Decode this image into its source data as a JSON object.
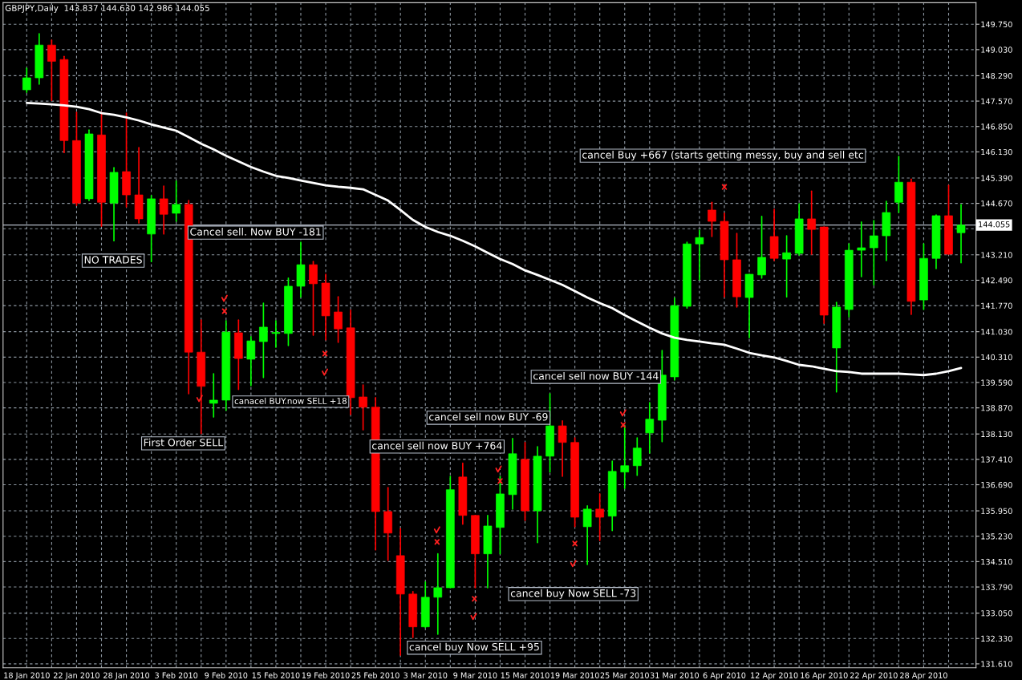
{
  "chart_data": {
    "type": "candlestick",
    "title": "GBPJPY,Daily  143.837 144.630 142.986 144.055",
    "categories": [
      "18 Jan 2010",
      null,
      null,
      null,
      "22 Jan 2010",
      null,
      null,
      null,
      "28 Jan 2010",
      null,
      null,
      null,
      "3 Feb 2010",
      null,
      null,
      null,
      "9 Feb 2010",
      null,
      null,
      null,
      "15 Feb 2010",
      null,
      null,
      null,
      "19 Feb 2010",
      null,
      null,
      null,
      "25 Feb 2010",
      null,
      null,
      null,
      "3 Mar 2010",
      null,
      null,
      null,
      "9 Mar 2010",
      null,
      null,
      null,
      "15 Mar 2010",
      null,
      null,
      null,
      "19 Mar 2010",
      null,
      null,
      null,
      "25 Mar 2010",
      null,
      null,
      null,
      "31 Mar 2010",
      null,
      null,
      null,
      "6 Apr 2010",
      null,
      null,
      null,
      "12 Apr 2010",
      null,
      null,
      null,
      "16 Apr 2010",
      null,
      null,
      null,
      "22 Apr 2010",
      null,
      null,
      null,
      "28 Apr 2010",
      null,
      null,
      null
    ],
    "ohlc": [
      [
        147.89,
        148.5,
        147.82,
        148.23
      ],
      [
        148.23,
        149.48,
        148.05,
        149.16
      ],
      [
        149.16,
        149.3,
        147.59,
        148.7
      ],
      [
        148.75,
        148.84,
        146.11,
        146.45
      ],
      [
        146.45,
        147.25,
        144.61,
        144.68
      ],
      [
        144.8,
        146.75,
        144.75,
        146.64
      ],
      [
        146.61,
        147.25,
        144.02,
        144.7
      ],
      [
        144.68,
        145.68,
        143.61,
        145.55
      ],
      [
        145.57,
        147.23,
        144.57,
        144.91
      ],
      [
        144.91,
        146.25,
        144.11,
        144.23
      ],
      [
        143.8,
        144.89,
        143.02,
        144.8
      ],
      [
        144.8,
        145.16,
        143.8,
        144.36
      ],
      [
        144.39,
        145.3,
        144.16,
        144.64
      ],
      [
        144.64,
        144.75,
        139.27,
        140.45
      ],
      [
        140.45,
        141.36,
        138.14,
        139.48
      ],
      [
        139.0,
        139.84,
        138.61,
        139.09
      ],
      [
        139.09,
        141.34,
        138.8,
        141.02
      ],
      [
        141.0,
        141.36,
        139.39,
        140.27
      ],
      [
        140.25,
        140.89,
        139.5,
        140.77
      ],
      [
        140.75,
        141.84,
        139.73,
        141.16
      ],
      [
        140.98,
        141.34,
        140.59,
        141.0
      ],
      [
        140.98,
        142.55,
        140.64,
        142.32
      ],
      [
        142.32,
        143.57,
        142.02,
        142.93
      ],
      [
        142.93,
        143.02,
        140.93,
        142.39
      ],
      [
        142.41,
        142.66,
        140.8,
        141.48
      ],
      [
        141.59,
        142.02,
        140.73,
        141.11
      ],
      [
        141.14,
        141.64,
        138.68,
        139.16
      ],
      [
        139.18,
        139.52,
        138.25,
        138.89
      ],
      [
        138.89,
        139.16,
        134.84,
        135.93
      ],
      [
        135.93,
        136.61,
        134.55,
        135.32
      ],
      [
        134.68,
        135.45,
        131.86,
        133.59
      ],
      [
        133.59,
        133.66,
        132.36,
        132.66
      ],
      [
        132.66,
        133.93,
        132.64,
        133.5
      ],
      [
        133.5,
        134.73,
        132.45,
        133.77
      ],
      [
        133.77,
        136.93,
        133.77,
        136.55
      ],
      [
        136.91,
        137.3,
        135.57,
        135.82
      ],
      [
        135.82,
        135.82,
        133.77,
        134.73
      ],
      [
        134.73,
        135.82,
        133.77,
        135.52
      ],
      [
        135.48,
        136.93,
        134.73,
        136.43
      ],
      [
        136.41,
        138.0,
        136.0,
        137.57
      ],
      [
        137.41,
        137.89,
        135.68,
        135.95
      ],
      [
        135.95,
        137.77,
        135.05,
        137.5
      ],
      [
        137.5,
        139.27,
        137.05,
        138.36
      ],
      [
        138.36,
        138.5,
        136.93,
        137.89
      ],
      [
        137.89,
        138.02,
        135.5,
        135.77
      ],
      [
        135.5,
        136.09,
        134.43,
        136.0
      ],
      [
        136.0,
        136.43,
        135.11,
        135.77
      ],
      [
        135.8,
        137.36,
        135.39,
        137.07
      ],
      [
        137.05,
        138.36,
        136.59,
        137.23
      ],
      [
        137.23,
        138.02,
        136.96,
        137.73
      ],
      [
        138.16,
        139.02,
        137.59,
        138.55
      ],
      [
        138.52,
        140.5,
        137.91,
        139.8
      ],
      [
        139.75,
        141.98,
        139.66,
        141.77
      ],
      [
        141.75,
        143.57,
        141.7,
        143.52
      ],
      [
        143.52,
        143.91,
        142.5,
        143.7
      ],
      [
        144.48,
        144.7,
        143.73,
        144.16
      ],
      [
        144.16,
        144.39,
        142.02,
        143.07
      ],
      [
        143.07,
        143.82,
        141.73,
        142.02
      ],
      [
        142.0,
        142.66,
        140.86,
        142.66
      ],
      [
        142.64,
        144.3,
        142.55,
        143.14
      ],
      [
        143.73,
        144.5,
        143.05,
        143.11
      ],
      [
        143.09,
        143.75,
        142.02,
        143.27
      ],
      [
        143.25,
        144.66,
        143.2,
        144.23
      ],
      [
        144.23,
        145.02,
        143.23,
        143.93
      ],
      [
        144.0,
        144.0,
        141.27,
        141.5
      ],
      [
        140.57,
        141.86,
        139.32,
        141.73
      ],
      [
        141.66,
        143.52,
        141.45,
        143.34
      ],
      [
        143.34,
        144.14,
        142.59,
        143.41
      ],
      [
        143.41,
        144.18,
        142.36,
        143.75
      ],
      [
        143.75,
        144.73,
        143.05,
        144.41
      ],
      [
        144.7,
        146.0,
        144.41,
        145.27
      ],
      [
        145.27,
        145.36,
        141.52,
        141.89
      ],
      [
        141.93,
        143.52,
        141.66,
        143.11
      ],
      [
        143.11,
        144.34,
        142.82,
        144.32
      ],
      [
        144.32,
        145.18,
        143.23,
        143.23
      ],
      [
        143.837,
        144.63,
        142.986,
        144.055
      ]
    ],
    "colors": [
      "#00ff00",
      "#00ff00",
      "#ff0000",
      "#ff0000",
      "#ff0000",
      "#00ff00",
      "#ff0000",
      "#00ff00",
      "#ff0000",
      "#ff0000",
      "#00ff00",
      "#ff0000",
      "#00ff00",
      "#ff0000",
      "#ff0000",
      "#00ff00",
      "#00ff00",
      "#ff0000",
      "#00ff00",
      "#00ff00",
      "#00ff00",
      "#00ff00",
      "#00ff00",
      "#ff0000",
      "#ff0000",
      "#ff0000",
      "#ff0000",
      "#ff0000",
      "#ff0000",
      "#ff0000",
      "#ff0000",
      "#ff0000",
      "#00ff00",
      "#00ff00",
      "#00ff00",
      "#ff0000",
      "#ff0000",
      "#00ff00",
      "#00ff00",
      "#00ff00",
      "#ff0000",
      "#00ff00",
      "#00ff00",
      "#ff0000",
      "#ff0000",
      "#00ff00",
      "#ff0000",
      "#00ff00",
      "#00ff00",
      "#00ff00",
      "#00ff00",
      "#00ff00",
      "#00ff00",
      "#00ff00",
      "#00ff00",
      "#ff0000",
      "#ff0000",
      "#ff0000",
      "#00ff00",
      "#00ff00",
      "#ff0000",
      "#00ff00",
      "#00ff00",
      "#ff0000",
      "#ff0000",
      "#00ff00",
      "#00ff00",
      "#00ff00",
      "#00ff00",
      "#00ff00",
      "#00ff00",
      "#ff0000",
      "#00ff00",
      "#00ff00",
      "#ff0000",
      "#00ff00"
    ],
    "series": [
      {
        "type": "line",
        "color": "#ffffff",
        "values": [
          147.52,
          147.5,
          147.48,
          147.45,
          147.41,
          147.34,
          147.23,
          147.18,
          147.11,
          147.02,
          146.91,
          146.82,
          146.73,
          146.55,
          146.36,
          146.2,
          146.02,
          145.86,
          145.7,
          145.57,
          145.45,
          145.39,
          145.32,
          145.25,
          145.18,
          145.14,
          145.11,
          145.07,
          144.91,
          144.75,
          144.48,
          144.2,
          144.0,
          143.86,
          143.75,
          143.61,
          143.45,
          143.27,
          143.09,
          142.95,
          142.77,
          142.64,
          142.5,
          142.36,
          142.18,
          142.0,
          141.84,
          141.7,
          141.5,
          141.32,
          141.14,
          140.98,
          140.86,
          140.8,
          140.75,
          140.7,
          140.66,
          140.55,
          140.43,
          140.36,
          140.3,
          140.2,
          140.09,
          140.05,
          139.98,
          139.91,
          139.89,
          139.84,
          139.84,
          139.84,
          139.84,
          139.82,
          139.8,
          139.84,
          139.91,
          140.0
        ]
      }
    ],
    "ylim": [
      131.5,
      150.36
    ],
    "yticks": [
      {
        "value": 149.75,
        "label": "149.750"
      },
      {
        "value": 149.03,
        "label": "149.030"
      },
      {
        "value": 148.29,
        "label": "148.290"
      },
      {
        "value": 147.57,
        "label": "147.570"
      },
      {
        "value": 146.85,
        "label": "146.850"
      },
      {
        "value": 146.13,
        "label": "146.130"
      },
      {
        "value": 145.39,
        "label": "145.390"
      },
      {
        "value": 144.67,
        "label": "144.670"
      },
      {
        "value": 143.95,
        "label": null
      },
      {
        "value": 143.21,
        "label": "143.210"
      },
      {
        "value": 142.49,
        "label": "142.490"
      },
      {
        "value": 141.77,
        "label": "141.770"
      },
      {
        "value": 141.03,
        "label": "141.030"
      },
      {
        "value": 140.31,
        "label": "140.310"
      },
      {
        "value": 139.59,
        "label": "139.590"
      },
      {
        "value": 138.87,
        "label": "138.870"
      },
      {
        "value": 138.13,
        "label": "138.130"
      },
      {
        "value": 137.41,
        "label": "137.410"
      },
      {
        "value": 136.69,
        "label": "136.690"
      },
      {
        "value": 135.95,
        "label": "135.950"
      },
      {
        "value": 135.23,
        "label": "135.230"
      },
      {
        "value": 134.51,
        "label": "134.510"
      },
      {
        "value": 133.79,
        "label": "133.790"
      },
      {
        "value": 133.05,
        "label": "133.050"
      },
      {
        "value": 132.33,
        "label": "132.330"
      },
      {
        "value": 131.61,
        "label": "131.610"
      }
    ],
    "ref_lines": [
      {
        "axis": "y",
        "value": 144.055,
        "label": "144.055",
        "color": "#b4bcc8"
      }
    ],
    "grid": true,
    "annotations": [
      "NO TRADES",
      "Cancel sell. Now BUY -181",
      "First Order SELL",
      "canacel BUY.now SELL +18",
      "cancel sell now BUY +764",
      "cancel sell now BUY -69",
      "cancel buy Now SELL +95",
      "cancel buy Now SELL -73",
      "cancel sell now BUY -144",
      "cancel Buy +667 (starts getting messy, buy and sell etc"
    ]
  }
}
